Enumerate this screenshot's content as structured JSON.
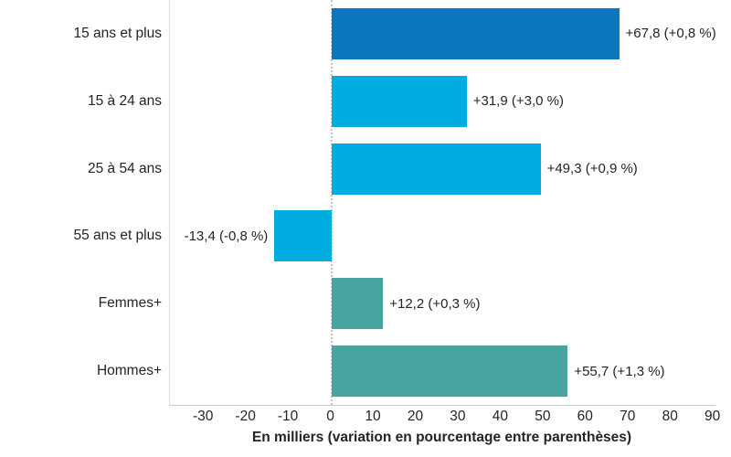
{
  "chart_data": {
    "type": "bar",
    "orientation": "horizontal",
    "categories": [
      "15 ans et plus",
      "15 à 24 ans",
      "25 à 54 ans",
      "55 ans et plus",
      "Femmes+",
      "Hommes+"
    ],
    "values": [
      67.8,
      31.9,
      49.3,
      -13.4,
      12.2,
      55.7
    ],
    "value_labels": [
      "+67,8 (+0,8 %)",
      "+31,9 (+3,0 %)",
      "+49,3 (+0,9 %)",
      "-13,4 (-0,8 %)",
      "+12,2 (+0,3 %)",
      "+55,7 (+1,3 %)"
    ],
    "bar_colors": [
      "#0a76bd",
      "#00ace0",
      "#00ace0",
      "#00ace0",
      "#47a49e",
      "#47a49e"
    ],
    "xlabel": "En milliers (variation en pourcentage entre parenthèses)",
    "x_ticks": [
      -30,
      -20,
      -10,
      0,
      10,
      20,
      30,
      40,
      50,
      60,
      70,
      80,
      90
    ],
    "x_tick_labels": [
      "-30",
      "-20",
      "-10",
      "0",
      "10",
      "20",
      "30",
      "40",
      "50",
      "60",
      "70",
      "80",
      "90"
    ],
    "xlim": [
      -38,
      90.5
    ],
    "grid": false,
    "zero_line": "dotted",
    "legend": "none",
    "title": ""
  },
  "style": {
    "accent_dark_blue": "#0a76bd",
    "accent_cyan": "#00ace0",
    "accent_teal": "#47a49e",
    "axis_line_color": "#cccccc",
    "zero_line_color": "#c4c4c4",
    "text_color": "#242424",
    "background": "#ffffff"
  }
}
